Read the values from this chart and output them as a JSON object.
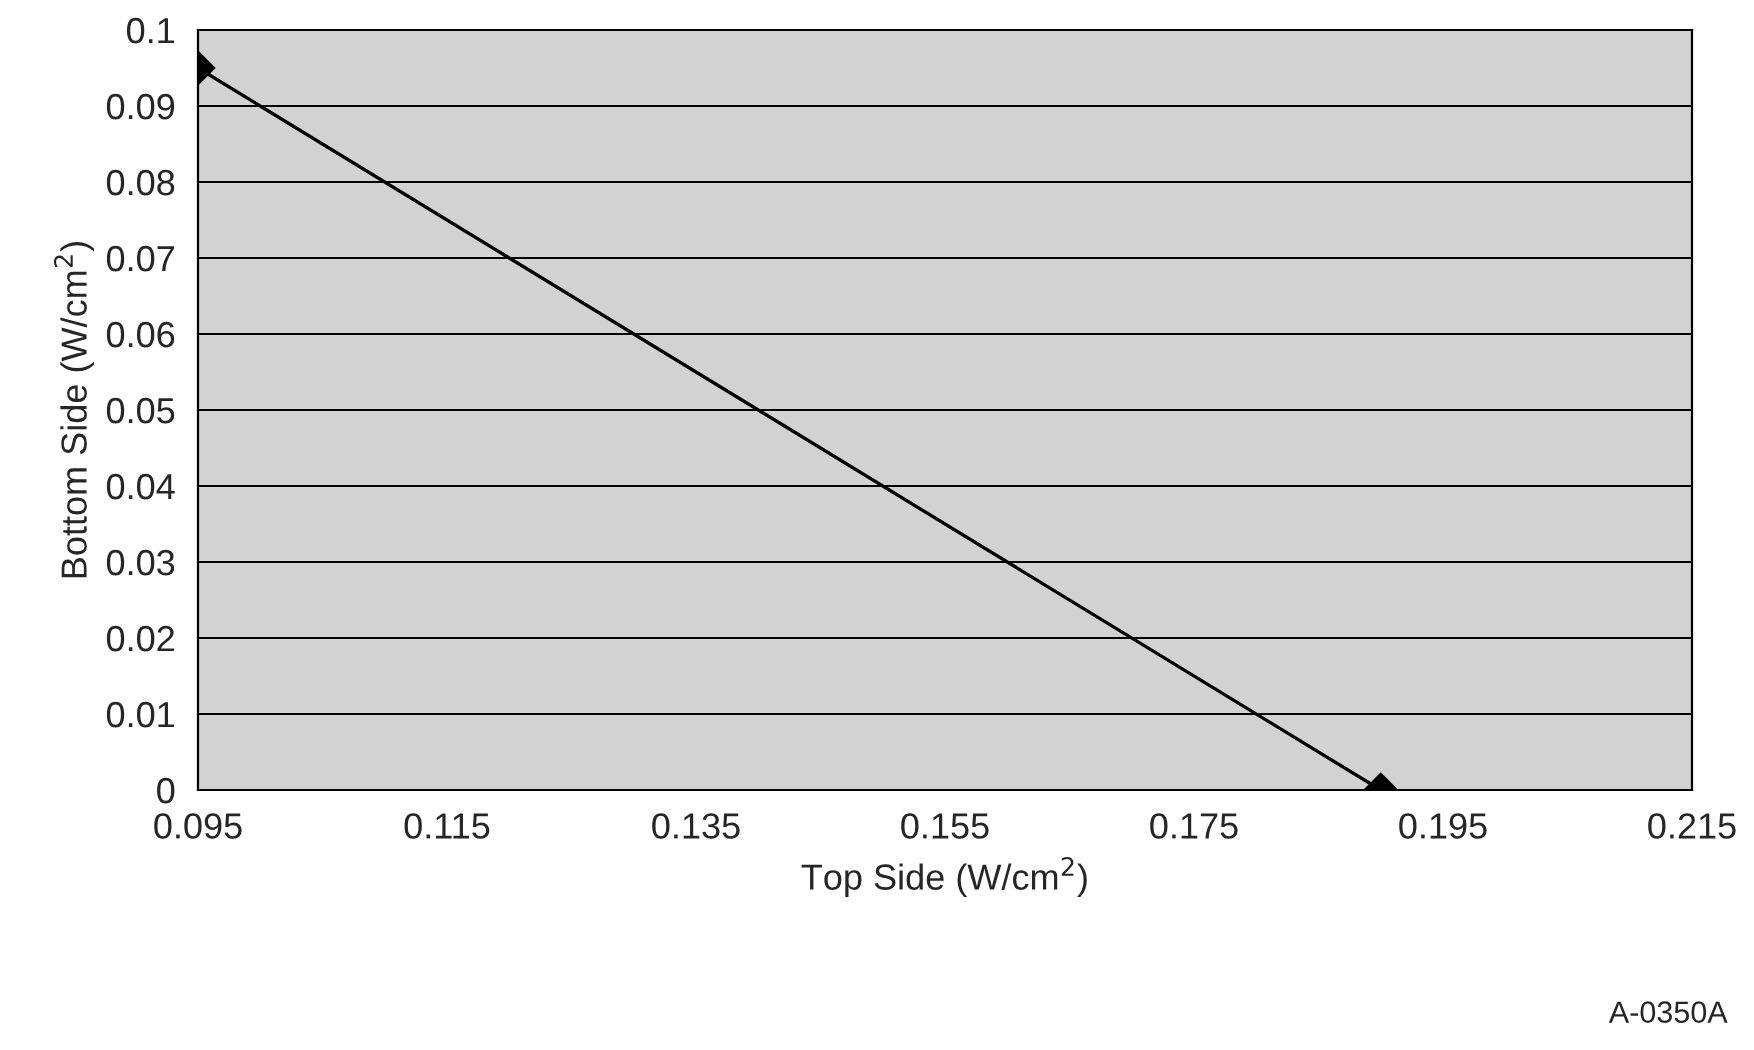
{
  "chart_data": {
    "type": "line",
    "xlabel": "Top Side (W/cm$^{2}$)",
    "ylabel": "Bottom Side (W/cm$^{2}$)",
    "x": [
      0.095,
      0.19
    ],
    "series": [
      {
        "color": "#000000",
        "values": [
          0.095,
          0
        ]
      }
    ],
    "xlim": [
      0.095,
      0.215
    ],
    "xticks": [
      0.095,
      0.115,
      0.135,
      0.155,
      0.175,
      0.195,
      0.215
    ],
    "ylim": [
      0,
      0.1
    ],
    "yticks": [
      0,
      0.01,
      0.02,
      0.03,
      0.04,
      0.05,
      0.06,
      0.07,
      0.08,
      0.09,
      0.1
    ],
    "grid": "y",
    "marker": "diamond",
    "line_style": "solid",
    "legend": false,
    "annotations": [
      "A-0350A"
    ]
  }
}
